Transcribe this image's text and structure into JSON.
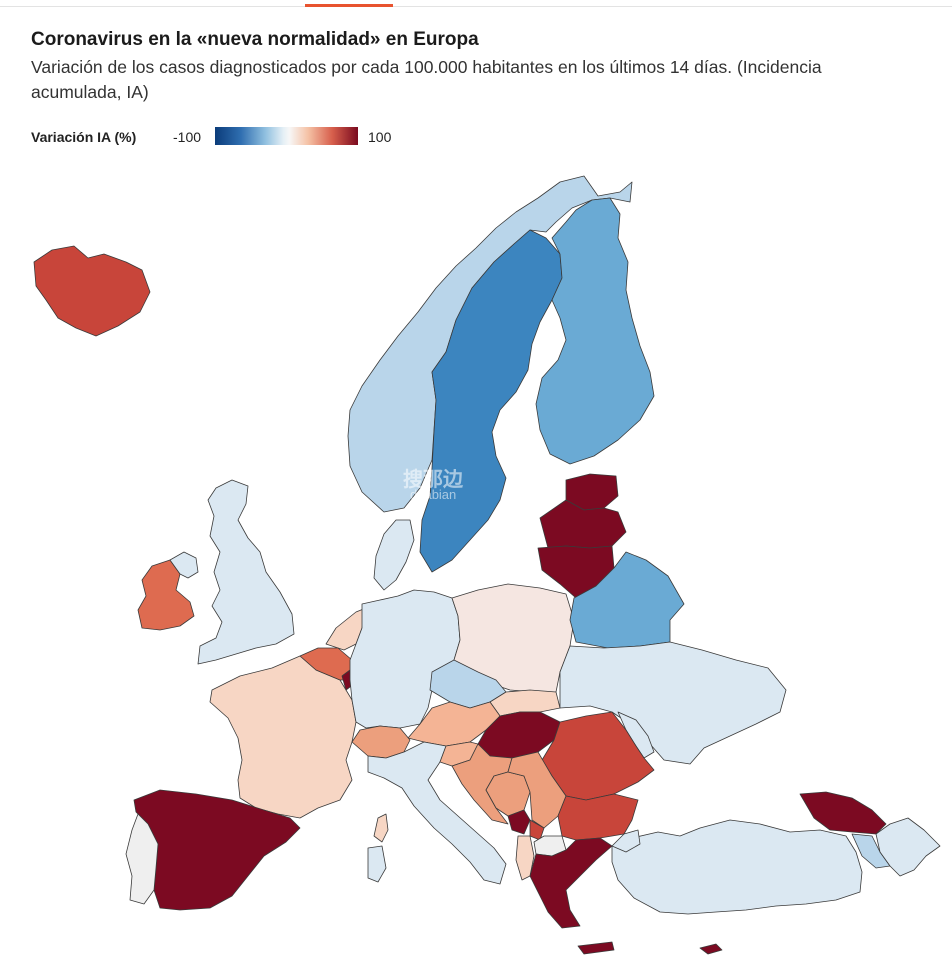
{
  "header": {
    "title": "Coronavirus en la «nueva normalidad» en Europa",
    "subtitle": "Variación de los casos diagnosticados por cada 100.000 habitantes en los últimos 14 días. (Incidencia acumulada, IA)"
  },
  "legend": {
    "label": "Variación IA (%)",
    "min_label": "-100",
    "max_label": "100",
    "range": [
      -100,
      100
    ],
    "colors": [
      "#0b3c7a",
      "#2f6eb0",
      "#8fbfdf",
      "#e6f0f6",
      "#f7f7f7",
      "#f5c2a6",
      "#d75f4c",
      "#7a0a1f"
    ]
  },
  "colors": {
    "dark_red": "#7c0a22",
    "red": "#c8453a",
    "salmon": "#de6b50",
    "orange": "#ec9f7d",
    "light_orange": "#f4b495",
    "peach": "#f7d6c4",
    "pale_pink": "#f5e6e1",
    "neutral": "#efefef",
    "pale_blue": "#dbe8f2",
    "light_blue": "#b9d5ea",
    "mid_blue": "#9cc6e2",
    "blue": "#6aaad4",
    "dark_blue": "#3c85bf"
  },
  "watermark": {
    "cn": "搜那边",
    "en": "dnabian"
  },
  "map_data": {
    "iceland": "red",
    "ireland": "salmon",
    "northern_ireland": "pale_blue",
    "united_kingdom": "pale_blue",
    "norway": "light_blue",
    "sweden": "dark_blue",
    "finland": "blue",
    "denmark": "pale_blue",
    "estonia": "dark_red",
    "latvia": "dark_red",
    "lithuania": "dark_red",
    "belarus": "blue",
    "netherlands": "peach",
    "belgium": "salmon",
    "luxembourg": "dark_red",
    "germany": "pale_blue",
    "poland": "pale_pink",
    "czechia": "light_blue",
    "slovakia": "peach",
    "austria": "light_orange",
    "switzerland": "orange",
    "france": "peach",
    "hungary": "dark_red",
    "ukraine": "pale_blue",
    "romania": "red",
    "moldova": "pale_blue",
    "slovenia": "light_orange",
    "croatia": "orange",
    "bosnia": "orange",
    "serbia": "orange",
    "montenegro": "dark_red",
    "kosovo": "red",
    "north_macedonia": "neutral",
    "albania": "peach",
    "bulgaria": "red",
    "greece": "dark_red",
    "turkey": "pale_blue",
    "cyprus": "dark_red",
    "georgia": "dark_red",
    "armenia": "light_blue",
    "azerbaijan": "pale_blue",
    "italy": "pale_blue",
    "sardinia": "pale_blue",
    "corsica": "peach",
    "spain": "dark_red",
    "portugal": "neutral"
  }
}
